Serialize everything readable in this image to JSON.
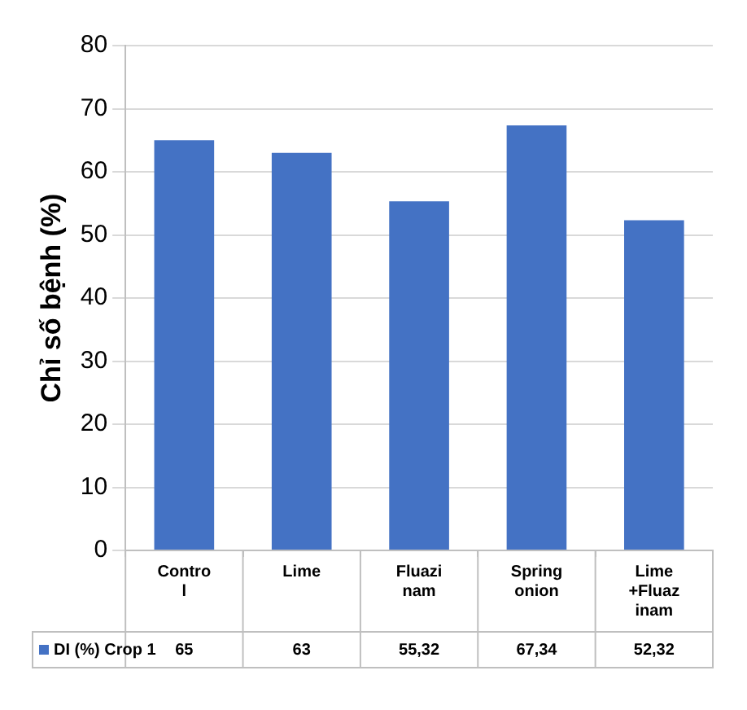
{
  "chart_data": {
    "type": "bar",
    "ylabel": "Chỉ số bệnh (%)",
    "categories": [
      "Control",
      "Lime",
      "Fluazinam",
      "Spring onion",
      "Lime +Fluazinam"
    ],
    "series": [
      {
        "name": "DI (%) Crop 1",
        "color": "#4472c4",
        "values": [
          65,
          63,
          55.32,
          67.34,
          52.32
        ],
        "value_labels": [
          "65",
          "63",
          "55,32",
          "67,34",
          "52,32"
        ]
      }
    ],
    "ylim": [
      0,
      80
    ],
    "yticks": [
      0,
      10,
      20,
      30,
      40,
      50,
      60,
      70,
      80
    ],
    "grid": "y",
    "legend": "bottom"
  }
}
